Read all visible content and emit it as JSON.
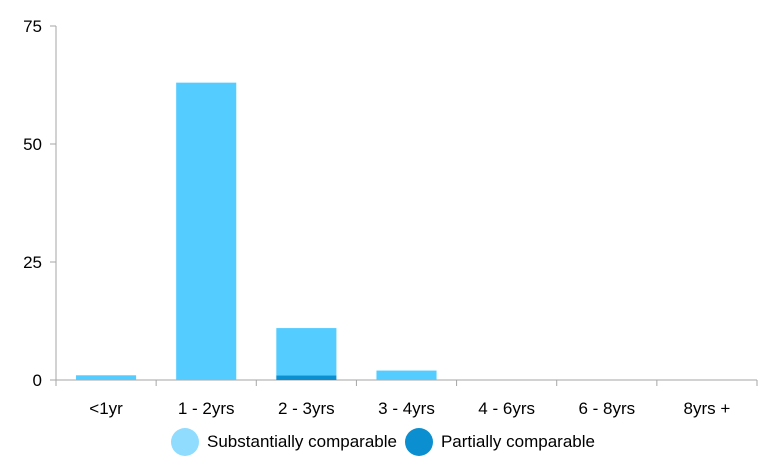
{
  "chart_data": {
    "type": "bar",
    "stacked": true,
    "categories": [
      "<1yr",
      "1 - 2yrs",
      "2 - 3yrs",
      "3 - 4yrs",
      "4 - 6yrs",
      "6 - 8yrs",
      "8yrs +"
    ],
    "series": [
      {
        "name": "Substantially comparable",
        "color": "#55ccff",
        "legend_color": "#8fdcff",
        "values": [
          1,
          63,
          10,
          2,
          0,
          0,
          0
        ]
      },
      {
        "name": "Partially comparable",
        "color": "#0b8fd0",
        "legend_color": "#0b8fd0",
        "values": [
          0,
          0,
          1,
          0,
          0,
          0,
          0
        ]
      }
    ],
    "ylim": [
      0,
      75
    ],
    "yticks": [
      0,
      25,
      50,
      75
    ],
    "title": "",
    "xlabel": "",
    "ylabel": "",
    "grid": false,
    "legend_position": "bottom"
  }
}
